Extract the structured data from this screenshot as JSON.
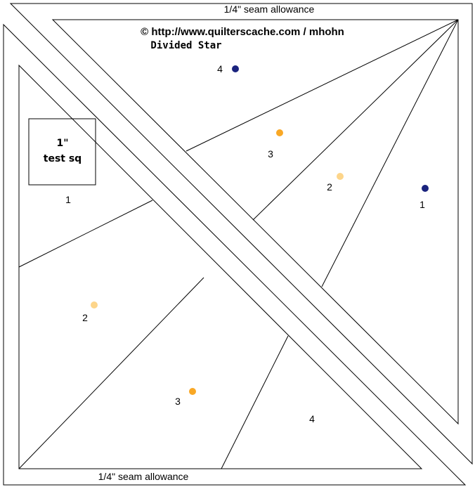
{
  "header": {
    "top_seam": "1/4\" seam allowance",
    "copyright": "© http://www.quilterscache.com / mhohn",
    "title": "Divided Star",
    "bottom_seam": "1/4\" seam allowance"
  },
  "test_square": {
    "size": "1\"",
    "label": "test sq"
  },
  "pieces": [
    {
      "label": "4"
    },
    {
      "label": "3"
    },
    {
      "label": "2"
    },
    {
      "label": "1"
    },
    {
      "label": "1"
    },
    {
      "label": "2"
    },
    {
      "label": "3"
    },
    {
      "label": "4"
    }
  ]
}
